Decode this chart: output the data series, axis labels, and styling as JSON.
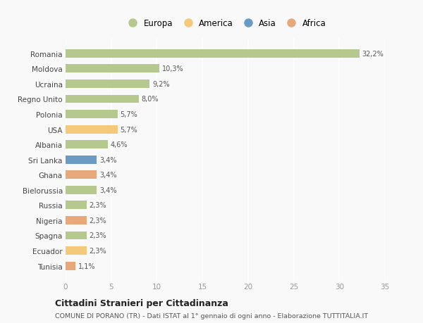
{
  "countries": [
    "Romania",
    "Moldova",
    "Ucraina",
    "Regno Unito",
    "Polonia",
    "USA",
    "Albania",
    "Sri Lanka",
    "Ghana",
    "Bielorussia",
    "Russia",
    "Nigeria",
    "Spagna",
    "Ecuador",
    "Tunisia"
  ],
  "values": [
    32.2,
    10.3,
    9.2,
    8.0,
    5.7,
    5.7,
    4.6,
    3.4,
    3.4,
    3.4,
    2.3,
    2.3,
    2.3,
    2.3,
    1.1
  ],
  "labels": [
    "32,2%",
    "10,3%",
    "9,2%",
    "8,0%",
    "5,7%",
    "5,7%",
    "4,6%",
    "3,4%",
    "3,4%",
    "3,4%",
    "2,3%",
    "2,3%",
    "2,3%",
    "2,3%",
    "1,1%"
  ],
  "colors": [
    "#b5c98e",
    "#b5c98e",
    "#b5c98e",
    "#b5c98e",
    "#b5c98e",
    "#f5c97a",
    "#b5c98e",
    "#6b9bc3",
    "#e8a87c",
    "#b5c98e",
    "#b5c98e",
    "#e8a87c",
    "#b5c98e",
    "#f5c97a",
    "#e8a87c"
  ],
  "legend_labels": [
    "Europa",
    "America",
    "Asia",
    "Africa"
  ],
  "legend_colors": [
    "#b5c98e",
    "#f5c97a",
    "#6b9bc3",
    "#e8a87c"
  ],
  "title": "Cittadini Stranieri per Cittadinanza",
  "subtitle": "COMUNE DI PORANO (TR) - Dati ISTAT al 1° gennaio di ogni anno - Elaborazione TUTTITALIA.IT",
  "xlim": [
    0,
    35
  ],
  "xticks": [
    0,
    5,
    10,
    15,
    20,
    25,
    30,
    35
  ],
  "background_color": "#f9f9f9",
  "grid_color": "#ffffff",
  "bar_height": 0.55
}
